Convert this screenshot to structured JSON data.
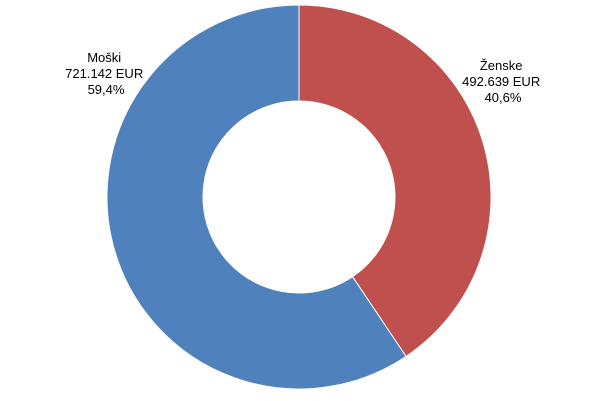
{
  "chart_data": {
    "type": "pie",
    "style": "donut",
    "title": "",
    "slices": [
      {
        "name": "Ženske",
        "value": 492639,
        "value_label": "492.639 EUR",
        "percent_label": "40,6%",
        "color": "#C0504D"
      },
      {
        "name": "Moški",
        "value": 721142,
        "value_label": "721.142 EUR",
        "percent_label": "59,4%",
        "color": "#4F81BD"
      }
    ],
    "legend": "none",
    "start_angle_deg": 0,
    "direction": "clockwise",
    "slice_border_color": "#FFFFFF"
  }
}
